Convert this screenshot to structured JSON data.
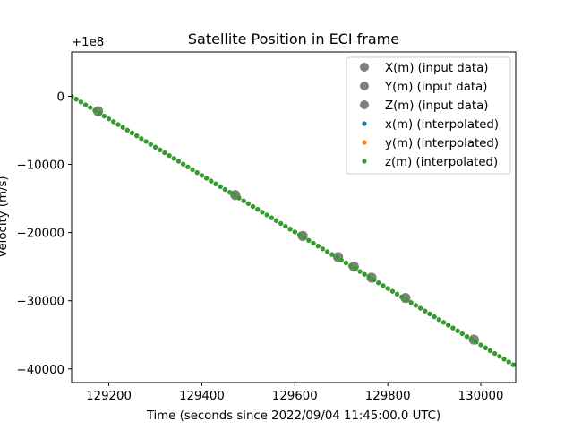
{
  "chart_data": {
    "type": "scatter",
    "title": "Satellite Position in ECI frame",
    "xlabel": "Time (seconds since 2022/09/04 11:45:00.0 UTC)",
    "ylabel": "Velocity (m/s)",
    "y_offset_label": "+1e8",
    "xlim": [
      129120,
      130075
    ],
    "ylim": [
      -42000,
      6500
    ],
    "x_ticks": [
      129200,
      129400,
      129600,
      129800,
      130000
    ],
    "x_tick_labels": [
      "129200",
      "129400",
      "129600",
      "129800",
      "130000"
    ],
    "y_ticks": [
      0,
      -10000,
      -20000,
      -30000,
      -40000
    ],
    "y_tick_labels": [
      "0",
      "−10000",
      "−20000",
      "−30000",
      "−40000"
    ],
    "legend_position": "top-right",
    "line": {
      "x_start": 129120,
      "y_start": 0,
      "x_end": 130075,
      "y_end": -39600
    },
    "series": [
      {
        "name": "X(m) (input data)",
        "color": "#808080",
        "marker": "large",
        "x": [
          129177,
          129472,
          129617,
          129693,
          129727,
          129765,
          129838,
          129985
        ],
        "y": [
          -2200,
          -14500,
          -20500,
          -23600,
          -25000,
          -26600,
          -29600,
          -35700
        ]
      },
      {
        "name": "Y(m) (input data)",
        "color": "#808080",
        "marker": "large",
        "x": [
          129177,
          129472,
          129617,
          129693,
          129727,
          129765,
          129838,
          129985
        ],
        "y": [
          -2200,
          -14500,
          -20500,
          -23600,
          -25000,
          -26600,
          -29600,
          -35700
        ]
      },
      {
        "name": "Z(m) (input data)",
        "color": "#808080",
        "marker": "large",
        "x": [
          129177,
          129472,
          129617,
          129693,
          129727,
          129765,
          129838,
          129985
        ],
        "y": [
          -2200,
          -14500,
          -20500,
          -23600,
          -25000,
          -26600,
          -29600,
          -35700
        ]
      },
      {
        "name": "x(m) (interpolated)",
        "color": "#1f77b4",
        "marker": "small",
        "step": 10
      },
      {
        "name": "y(m) (interpolated)",
        "color": "#ff7f0e",
        "marker": "small",
        "step": 10
      },
      {
        "name": "z(m) (interpolated)",
        "color": "#2ca02c",
        "marker": "small",
        "step": 10
      }
    ]
  }
}
